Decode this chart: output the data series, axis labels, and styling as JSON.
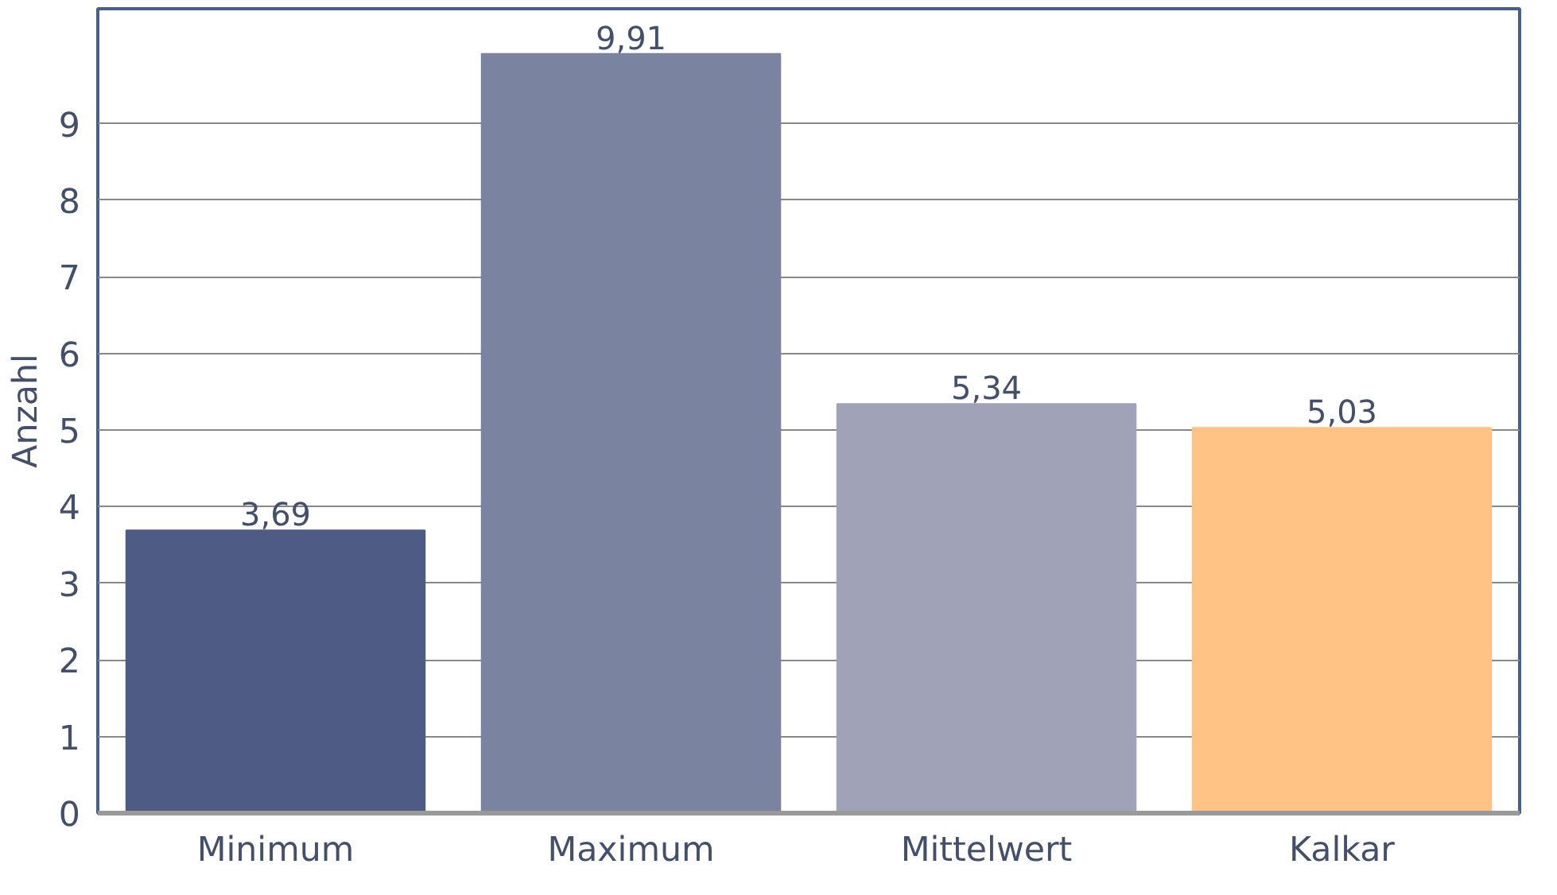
{
  "chart_data": {
    "type": "bar",
    "ylabel": "Anzahl",
    "categories": [
      "Minimum",
      "Maximum",
      "Mittelwert",
      "Kalkar"
    ],
    "values": [
      3.69,
      9.91,
      5.34,
      5.03
    ],
    "colors": [
      "#4e5b85",
      "#7a83a0",
      "#a0a3b8",
      "#ffc386"
    ],
    "value_labels": [
      "3,69",
      "9,91",
      "5,34",
      "5,03"
    ],
    "ylim": [
      0,
      10.5
    ],
    "yticks": [
      0,
      1,
      2,
      3,
      4,
      5,
      6,
      7,
      8,
      9
    ],
    "grid": "y"
  }
}
